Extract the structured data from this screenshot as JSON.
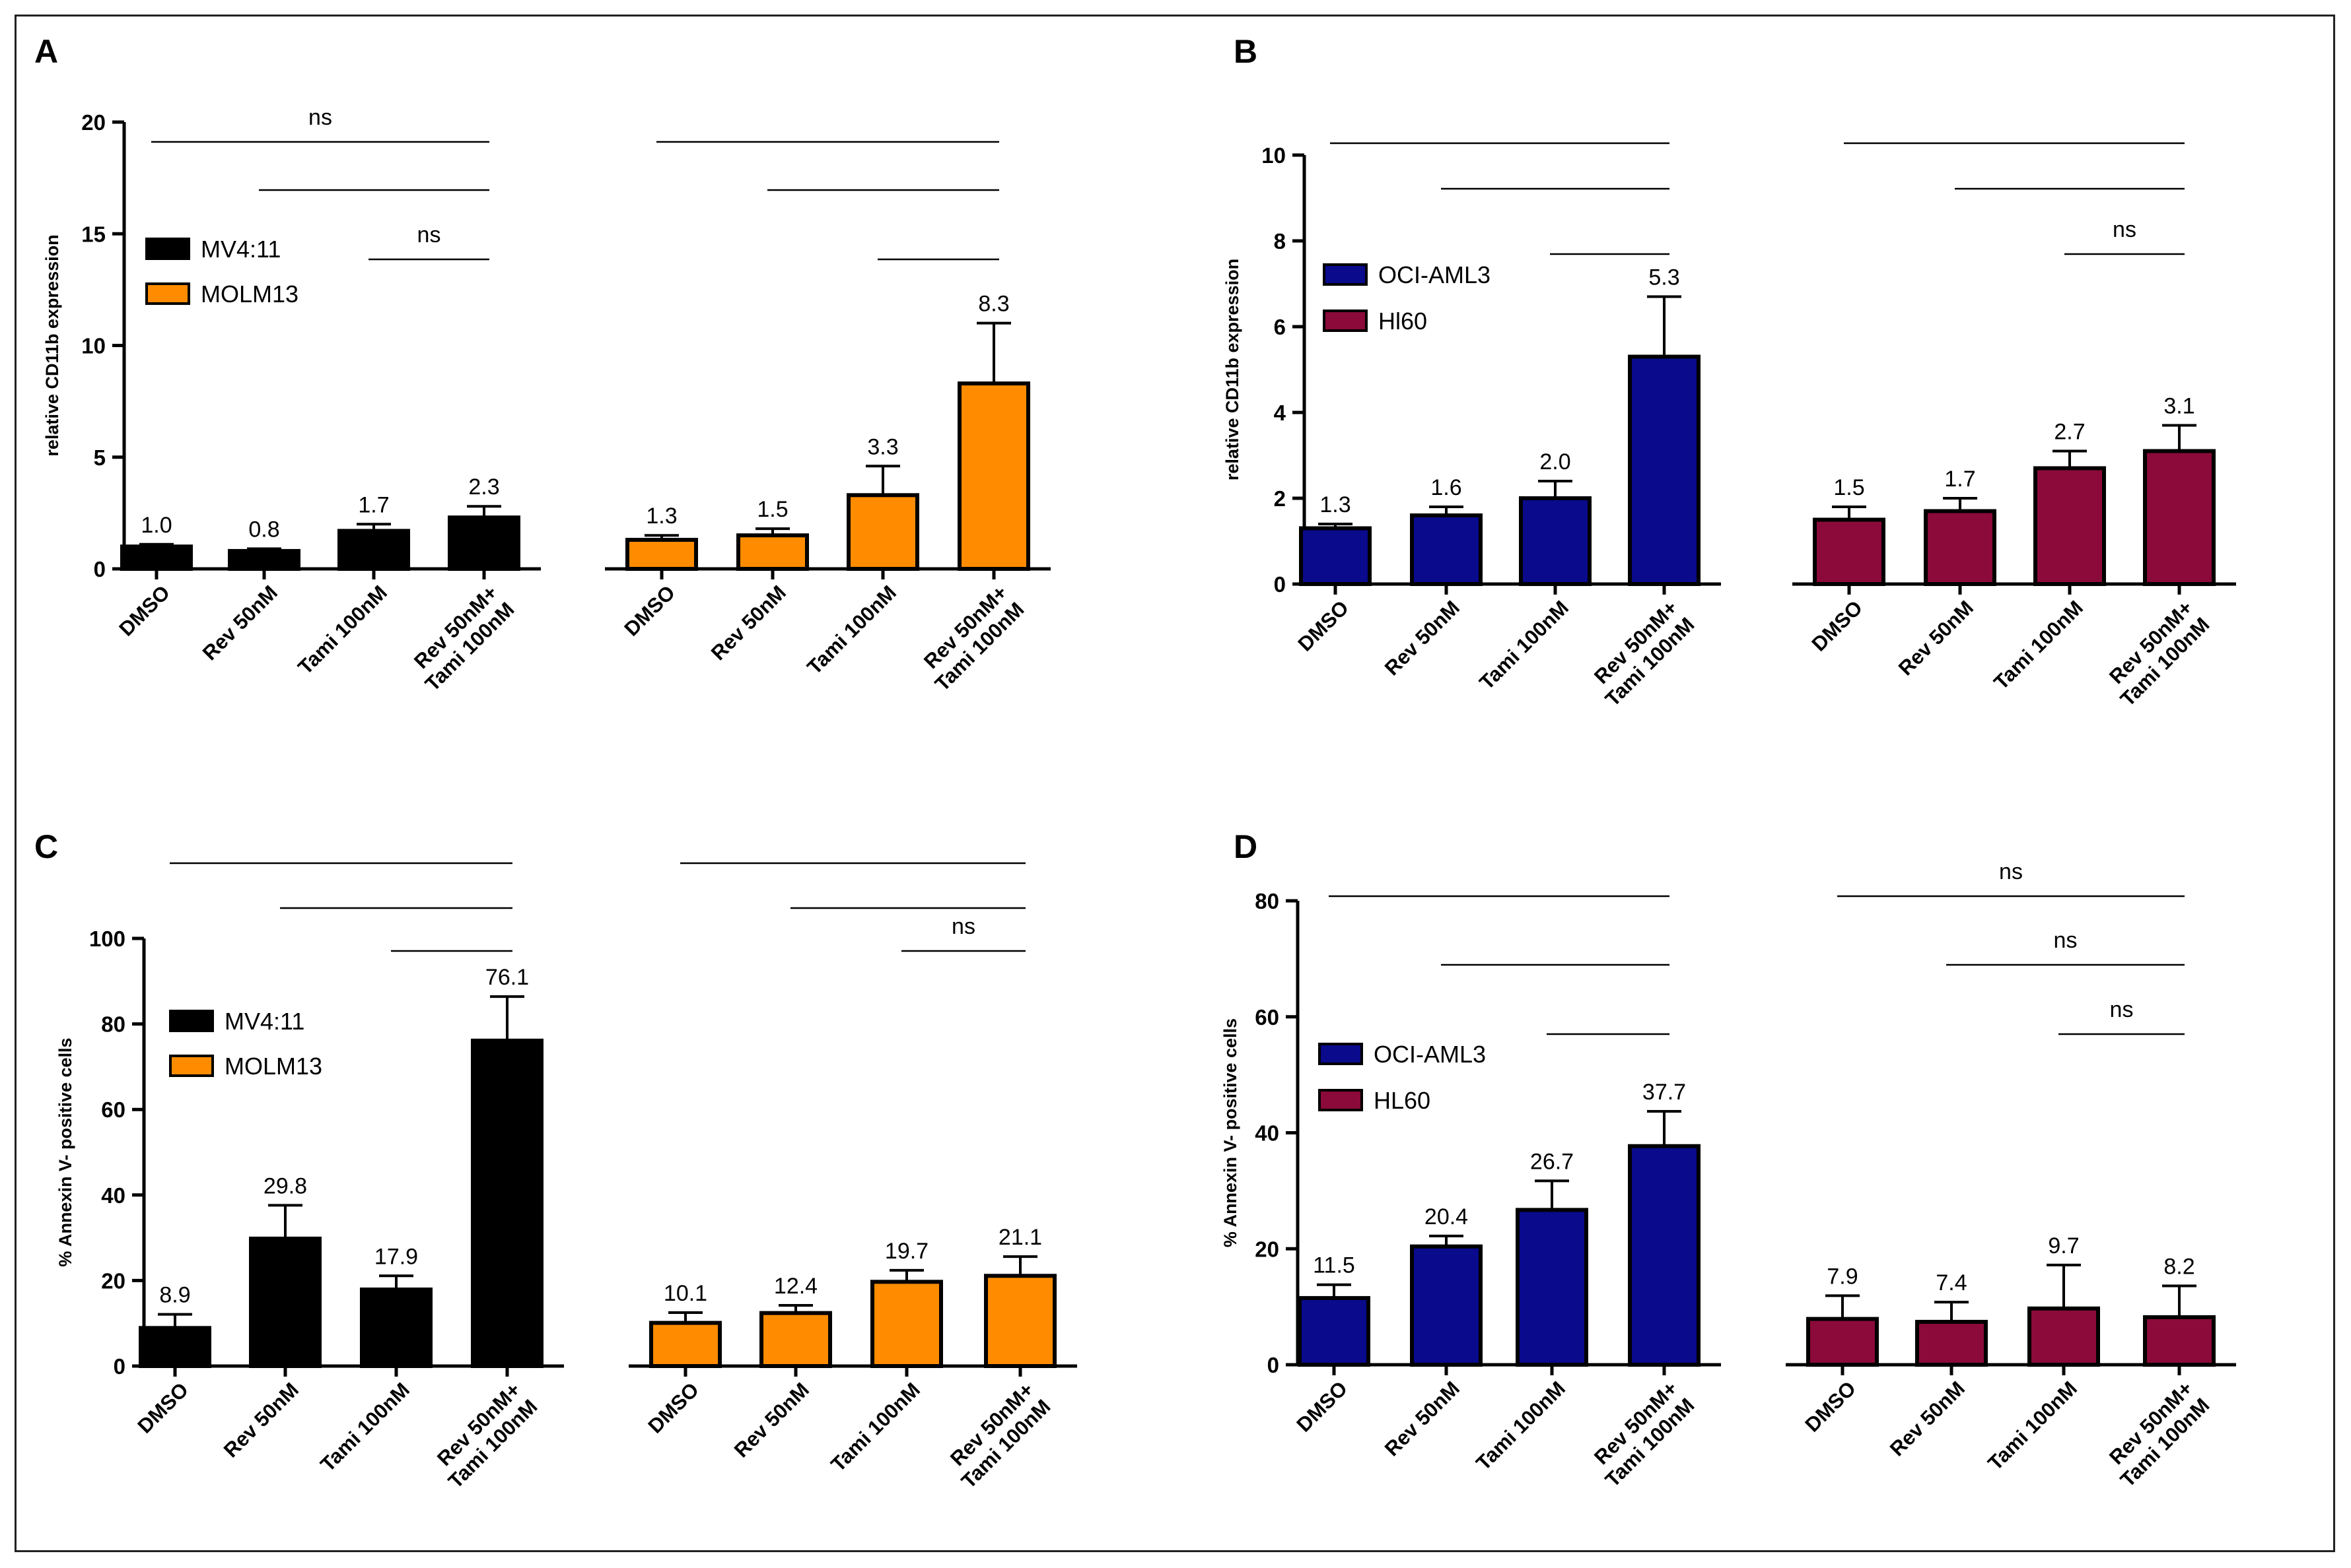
{
  "chart_data": [
    {
      "panel": "A",
      "type": "bar",
      "ylabel": "relative CD11b expression",
      "ylim": [
        0,
        20
      ],
      "yticks": [
        0,
        5,
        10,
        15,
        20
      ],
      "categories": [
        "DMSO",
        "Rev 50nM",
        "Tami 100nM",
        "Rev 50nM+\nTami 100nM"
      ],
      "colors": {
        "MV4:11": "#000000",
        "MOLM13": "#ff8c00"
      },
      "series": [
        {
          "name": "MV4:11",
          "values": [
            1.0,
            0.8,
            1.7,
            2.3
          ],
          "errors": [
            0.1,
            0.1,
            0.3,
            0.5
          ],
          "labels": [
            "1.0",
            "0.8",
            "1.7",
            "2.3"
          ]
        },
        {
          "name": "MOLM13",
          "values": [
            1.3,
            1.5,
            3.3,
            8.3
          ],
          "errors": [
            0.2,
            0.3,
            1.3,
            2.7
          ],
          "labels": [
            "1.3",
            "1.5",
            "3.3",
            "8.3"
          ]
        }
      ],
      "significance": [
        [
          {
            "from": 0,
            "to": 3,
            "label": "ns"
          },
          {
            "from": 1,
            "to": 3,
            "label": ""
          },
          {
            "from": 2,
            "to": 3,
            "label": "ns"
          }
        ],
        [
          {
            "from": 0,
            "to": 3,
            "label": ""
          },
          {
            "from": 1,
            "to": 3,
            "label": ""
          },
          {
            "from": 2,
            "to": 3,
            "label": ""
          }
        ]
      ]
    },
    {
      "panel": "B",
      "type": "bar",
      "ylabel": "relative CD11b expression",
      "ylim": [
        0,
        10
      ],
      "yticks": [
        0,
        2,
        4,
        6,
        8,
        10
      ],
      "categories": [
        "DMSO",
        "Rev 50nM",
        "Tami 100nM",
        "Rev 50nM+\nTami 100nM"
      ],
      "colors": {
        "OCI-AML3": "#0a0a8c",
        "Hl60": "#8b0a3a"
      },
      "series": [
        {
          "name": "OCI-AML3",
          "values": [
            1.3,
            1.6,
            2.0,
            5.3
          ],
          "errors": [
            0.1,
            0.2,
            0.4,
            1.4
          ],
          "labels": [
            "1.3",
            "1.6",
            "2.0",
            "5.3"
          ]
        },
        {
          "name": "Hl60",
          "values": [
            1.5,
            1.7,
            2.7,
            3.1
          ],
          "errors": [
            0.3,
            0.3,
            0.4,
            0.6
          ],
          "labels": [
            "1.5",
            "1.7",
            "2.7",
            "3.1"
          ]
        }
      ],
      "significance": [
        [
          {
            "from": 0,
            "to": 3,
            "label": ""
          },
          {
            "from": 1,
            "to": 3,
            "label": ""
          },
          {
            "from": 2,
            "to": 3,
            "label": ""
          }
        ],
        [
          {
            "from": 0,
            "to": 3,
            "label": ""
          },
          {
            "from": 1,
            "to": 3,
            "label": ""
          },
          {
            "from": 2,
            "to": 3,
            "label": "ns"
          }
        ]
      ]
    },
    {
      "panel": "C",
      "type": "bar",
      "ylabel": "% Annexin V- positive cells",
      "ylim": [
        0,
        100
      ],
      "yticks": [
        0,
        20,
        40,
        60,
        80,
        100
      ],
      "categories": [
        "DMSO",
        "Rev 50nM",
        "Tami 100nM",
        "Rev 50nM+\nTami 100nM"
      ],
      "colors": {
        "MV4:11": "#000000",
        "MOLM13": "#ff8c00"
      },
      "series": [
        {
          "name": "MV4:11",
          "values": [
            8.9,
            29.8,
            17.9,
            76.1
          ],
          "errors": [
            3.2,
            7.8,
            3.2,
            10.3
          ],
          "labels": [
            "8.9",
            "29.8",
            "17.9",
            "76.1"
          ]
        },
        {
          "name": "MOLM13",
          "values": [
            10.1,
            12.4,
            19.7,
            21.1
          ],
          "errors": [
            2.4,
            1.8,
            2.7,
            4.5
          ],
          "labels": [
            "10.1",
            "12.4",
            "19.7",
            "21.1"
          ]
        }
      ],
      "significance": [
        [
          {
            "from": 0,
            "to": 3,
            "label": ""
          },
          {
            "from": 1,
            "to": 3,
            "label": ""
          },
          {
            "from": 2,
            "to": 3,
            "label": ""
          }
        ],
        [
          {
            "from": 0,
            "to": 3,
            "label": ""
          },
          {
            "from": 1,
            "to": 3,
            "label": ""
          },
          {
            "from": 2,
            "to": 3,
            "label": "ns"
          }
        ]
      ]
    },
    {
      "panel": "D",
      "type": "bar",
      "ylabel": "% Annexin V- positive cells",
      "ylim": [
        0,
        80
      ],
      "yticks": [
        0,
        20,
        40,
        60,
        80
      ],
      "categories": [
        "DMSO",
        "Rev 50nM",
        "Tami 100nM",
        "Rev 50nM+\nTami 100nM"
      ],
      "colors": {
        "OCI-AML3": "#0a0a8c",
        "HL60": "#8b0a3a"
      },
      "series": [
        {
          "name": "OCI-AML3",
          "values": [
            11.5,
            20.4,
            26.7,
            37.7
          ],
          "errors": [
            2.3,
            1.8,
            5.0,
            6.0
          ],
          "labels": [
            "11.5",
            "20.4",
            "26.7",
            "37.7"
          ]
        },
        {
          "name": "HL60",
          "values": [
            7.9,
            7.4,
            9.7,
            8.2
          ],
          "errors": [
            4.0,
            3.4,
            7.5,
            5.4
          ],
          "labels": [
            "7.9",
            "7.4",
            "9.7",
            "8.2"
          ]
        }
      ],
      "significance": [
        [
          {
            "from": 0,
            "to": 3,
            "label": ""
          },
          {
            "from": 1,
            "to": 3,
            "label": ""
          },
          {
            "from": 2,
            "to": 3,
            "label": ""
          }
        ],
        [
          {
            "from": 0,
            "to": 3,
            "label": "ns"
          },
          {
            "from": 1,
            "to": 3,
            "label": "ns"
          },
          {
            "from": 2,
            "to": 3,
            "label": "ns"
          }
        ]
      ]
    }
  ]
}
